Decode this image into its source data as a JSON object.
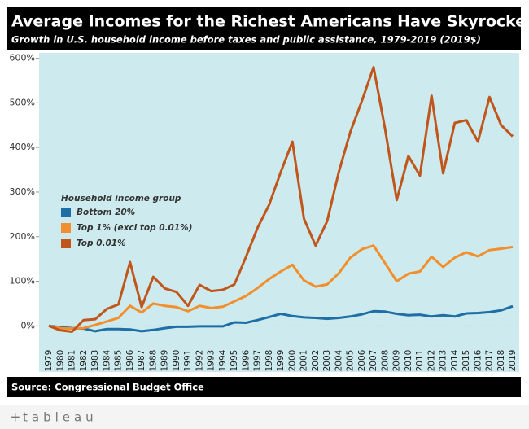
{
  "chart_data": {
    "type": "line",
    "title": "Average Incomes for the Richest Americans Have Skyrocketed",
    "subtitle": "Growth in U.S. household income before taxes and public assistance, 1979-2019 (2019$)",
    "source": "Source: Congressional Budget Office",
    "brand": "tableau",
    "legend_title": "Household income group",
    "legend": "upper left",
    "categories": [
      "1979",
      "1980",
      "1981",
      "1982",
      "1983",
      "1984",
      "1985",
      "1986",
      "1987",
      "1988",
      "1989",
      "1990",
      "1991",
      "1992",
      "1993",
      "1994",
      "1995",
      "1996",
      "1997",
      "1998",
      "1999",
      "2000",
      "2001",
      "2002",
      "2003",
      "2004",
      "2005",
      "2006",
      "2007",
      "2008",
      "2009",
      "2010",
      "2011",
      "2012",
      "2013",
      "2014",
      "2015",
      "2016",
      "2017",
      "2018",
      "2019"
    ],
    "series": [
      {
        "name": "Bottom 20%",
        "color": "#1f6ea6",
        "values": [
          0,
          -3,
          -5,
          -6,
          -12,
          -7,
          -7,
          -8,
          -12,
          -9,
          -5,
          -2,
          -2,
          -1,
          -1,
          -1,
          8,
          7,
          13,
          20,
          27,
          22,
          19,
          18,
          16,
          18,
          21,
          26,
          33,
          32,
          27,
          24,
          25,
          21,
          24,
          21,
          28,
          29,
          31,
          35,
          44
        ]
      },
      {
        "name": "Top 1% (excl top 0.01%)",
        "color": "#f28e2b",
        "values": [
          0,
          -5,
          -6,
          -5,
          2,
          10,
          18,
          45,
          30,
          50,
          45,
          42,
          33,
          45,
          40,
          43,
          55,
          67,
          85,
          105,
          122,
          137,
          102,
          88,
          93,
          118,
          153,
          172,
          180,
          140,
          100,
          117,
          122,
          155,
          132,
          153,
          165,
          156,
          170,
          173,
          177
        ]
      },
      {
        "name": "Top 0.01%",
        "color": "#c0561b",
        "values": [
          0,
          -10,
          -13,
          13,
          15,
          38,
          48,
          143,
          42,
          110,
          84,
          76,
          45,
          92,
          78,
          81,
          93,
          155,
          220,
          272,
          345,
          413,
          240,
          180,
          235,
          345,
          435,
          505,
          580,
          440,
          282,
          381,
          337,
          516,
          342,
          455,
          461,
          413,
          513,
          450,
          425
        ]
      }
    ],
    "ylim": [
      -45,
      612
    ],
    "yticks": [
      {
        "value": 0,
        "label": "0%"
      },
      {
        "value": 100,
        "label": "100%"
      },
      {
        "value": 200,
        "label": "200%"
      },
      {
        "value": 300,
        "label": "300%"
      },
      {
        "value": 400,
        "label": "400%"
      },
      {
        "value": 500,
        "label": "500%"
      },
      {
        "value": 600,
        "label": "600%"
      }
    ],
    "zero_line": true
  }
}
